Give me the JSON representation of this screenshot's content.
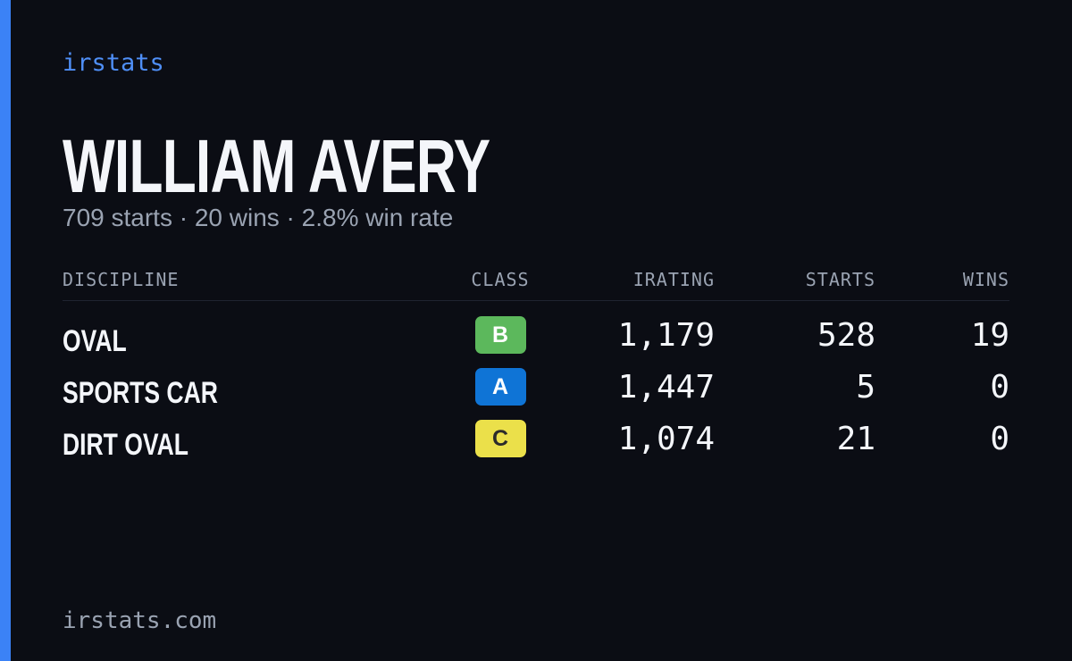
{
  "brand": "irstats",
  "title": "WILLIAM AVERY",
  "subtitle": "709 starts · 20 wins · 2.8% win rate",
  "table": {
    "headers": [
      "DISCIPLINE",
      "CLASS",
      "IRATING",
      "STARTS",
      "WINS"
    ],
    "rows": [
      {
        "discipline": "OVAL",
        "class": "B",
        "class_color": "#5cb85c",
        "class_text_color": "#ffffff",
        "irating": "1,179",
        "starts": 528,
        "wins": 19
      },
      {
        "discipline": "SPORTS CAR",
        "class": "A",
        "class_color": "#0f74d6",
        "class_text_color": "#ffffff",
        "irating": "1,447",
        "starts": 5,
        "wins": 0
      },
      {
        "discipline": "DIRT OVAL",
        "class": "C",
        "class_color": "#ebe04a",
        "class_text_color": "#2b2b2b",
        "irating": "1,074",
        "starts": 21,
        "wins": 0
      }
    ]
  },
  "footer": "irstats.com"
}
